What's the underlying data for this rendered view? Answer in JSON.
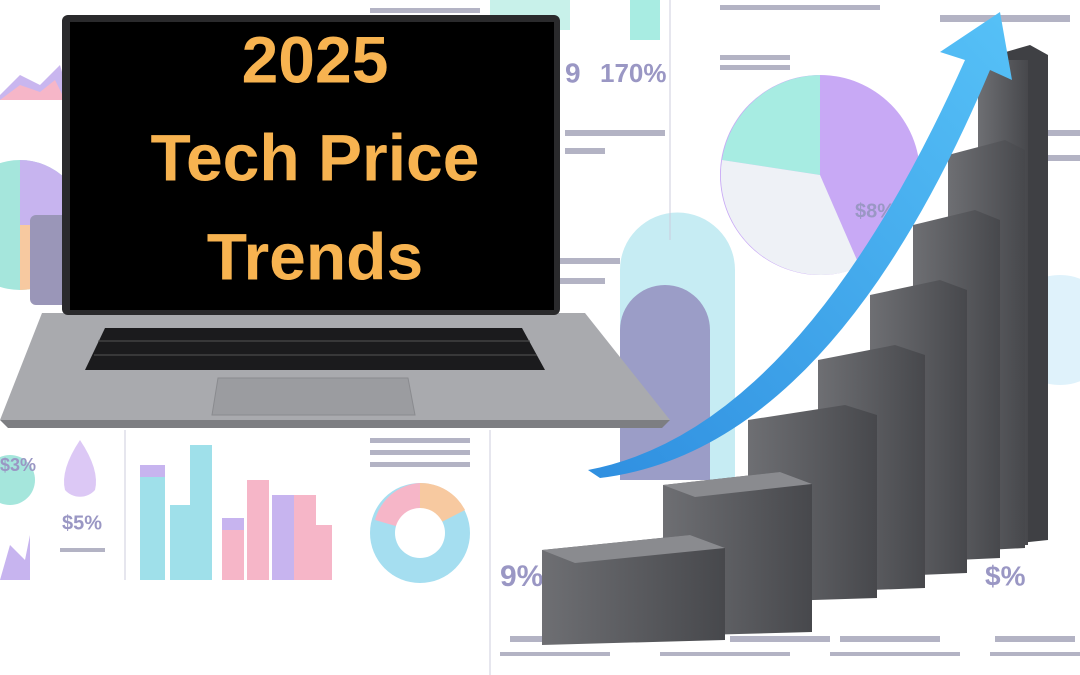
{
  "screen": {
    "lines": [
      "2025",
      "Tech Price",
      "Trends"
    ]
  },
  "background_labels": [
    "9",
    "170%",
    "$8%",
    "9%",
    "$%",
    "$5%",
    "$3%"
  ]
}
